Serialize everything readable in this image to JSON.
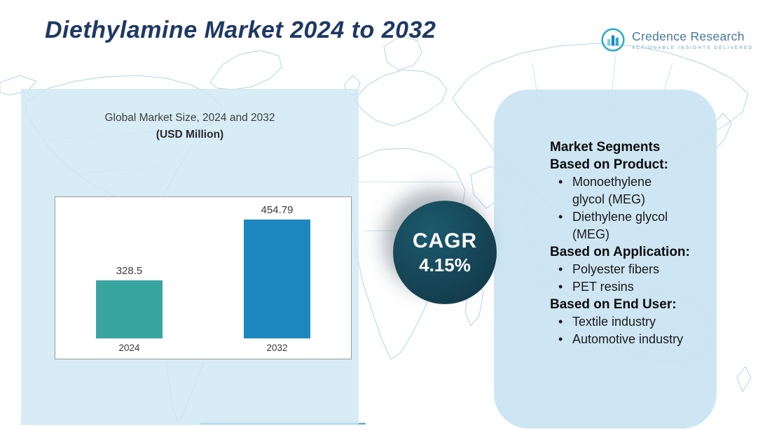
{
  "header": {
    "title": "Diethylamine Market 2024 to 2032",
    "logo": {
      "name": "Credence Research",
      "tagline": "Actionable Insights Delivered"
    }
  },
  "market_size_panel": {
    "title_line1": "Global Market Size, 2024 and 2032",
    "title_line2": "(USD Million)"
  },
  "chart_data": {
    "type": "bar",
    "title": "Global Market Size, 2024 and 2032 (USD Million)",
    "categories": [
      "2024",
      "2032"
    ],
    "values": [
      328.5,
      454.79
    ],
    "xlabel": "",
    "ylabel": "USD Million",
    "value_axis": [
      210,
      480
    ],
    "grid": false,
    "legend": false,
    "bar_colors": [
      "#38A5A1",
      "#1E87BE"
    ]
  },
  "cagr_badge": {
    "label": "CAGR",
    "value": "4.15%",
    "background": "#143F4F"
  },
  "segments_panel": {
    "heading": "Market Segments",
    "groups": [
      {
        "heading": "Based on Product:",
        "items": [
          "Monoethylene\nglycol (MEG)",
          "Diethylene glycol\n(MEG)"
        ]
      },
      {
        "heading": "Based on Application:",
        "items": [
          "Polyester fibers",
          "PET resins"
        ]
      },
      {
        "heading": "Based on End User:",
        "items": [
          "Textile industry",
          "Automotive industry"
        ]
      }
    ]
  },
  "ui": {
    "bullet": "•"
  },
  "colors": {
    "title": "#1F3864",
    "panel_background": "#CEE7F4",
    "map_line": "#AFD3E6",
    "logo_accent": "#2FA9CC"
  }
}
